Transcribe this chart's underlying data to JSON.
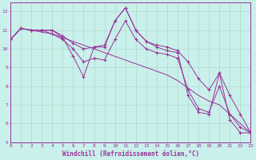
{
  "title": "",
  "xlabel": "Windchill (Refroidissement éolien,°C)",
  "ylabel": "",
  "bg_color": "#caf0eb",
  "line_color": "#993399",
  "grid_color": "#aaddcc",
  "x": [
    0,
    1,
    2,
    3,
    4,
    5,
    6,
    7,
    8,
    9,
    10,
    11,
    12,
    13,
    14,
    15,
    16,
    17,
    18,
    19,
    20,
    21,
    22,
    23
  ],
  "y_main": [
    10.5,
    11.1,
    11.0,
    11.0,
    11.0,
    10.6,
    9.6,
    8.5,
    10.1,
    10.1,
    11.5,
    12.2,
    11.0,
    10.4,
    10.1,
    9.9,
    9.8,
    7.5,
    6.6,
    6.5,
    8.7,
    6.2,
    5.5,
    5.5
  ],
  "y_upper": [
    10.5,
    11.1,
    11.0,
    11.0,
    11.0,
    10.7,
    10.3,
    10.0,
    10.1,
    10.2,
    11.5,
    12.2,
    11.0,
    10.4,
    10.2,
    10.1,
    9.9,
    9.3,
    8.4,
    7.8,
    8.7,
    7.5,
    6.5,
    5.5
  ],
  "y_lower": [
    10.5,
    11.1,
    11.0,
    11.0,
    10.8,
    10.5,
    10.0,
    9.3,
    9.5,
    9.4,
    10.5,
    11.5,
    10.5,
    10.0,
    9.8,
    9.7,
    9.5,
    7.8,
    6.8,
    6.6,
    8.0,
    6.5,
    5.8,
    5.5
  ],
  "y_trend": [
    10.5,
    11.1,
    11.0,
    10.9,
    10.8,
    10.6,
    10.4,
    10.2,
    10.0,
    9.8,
    9.6,
    9.4,
    9.2,
    9.0,
    8.8,
    8.6,
    8.3,
    7.9,
    7.5,
    7.2,
    7.0,
    6.5,
    6.0,
    5.5
  ],
  "xlim": [
    0,
    23
  ],
  "ylim": [
    5,
    12.5
  ],
  "yticks": [
    5,
    6,
    7,
    8,
    9,
    10,
    11,
    12
  ],
  "xticks": [
    0,
    1,
    2,
    3,
    4,
    5,
    6,
    7,
    8,
    9,
    10,
    11,
    12,
    13,
    14,
    15,
    16,
    17,
    18,
    19,
    20,
    21,
    22,
    23
  ],
  "font_color": "#993399",
  "tick_fontsize": 4.5,
  "xlabel_fontsize": 5.5,
  "spine_color": "#993399"
}
